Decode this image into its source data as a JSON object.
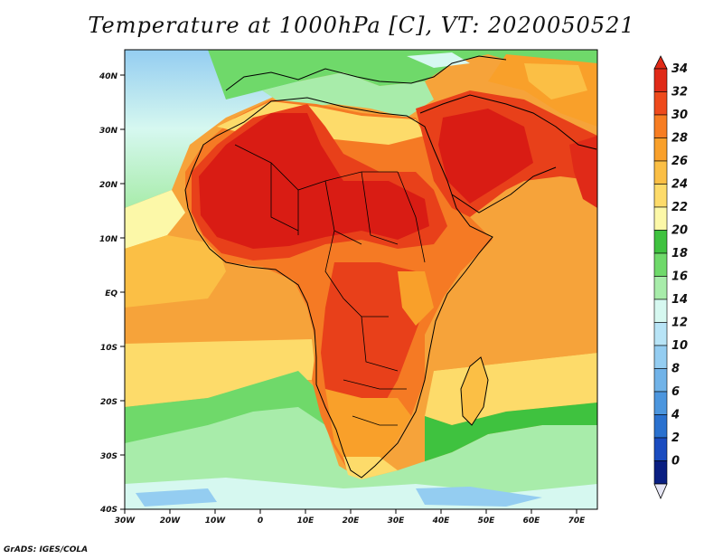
{
  "title": "Temperature at 1000hPa [C], VT: 2020050521",
  "credit": "GrADS: IGES/COLA",
  "lat_labels": [
    "40N",
    "30N",
    "20N",
    "10N",
    "EQ",
    "10S",
    "20S",
    "30S",
    "40S"
  ],
  "lon_labels": [
    "30W",
    "20W",
    "10W",
    "0",
    "10E",
    "20E",
    "30E",
    "40E",
    "50E",
    "60E",
    "70E"
  ],
  "colorbar": {
    "labels": [
      "34",
      "32",
      "30",
      "28",
      "26",
      "24",
      "22",
      "20",
      "18",
      "16",
      "14",
      "12",
      "10",
      "8",
      "6",
      "4",
      "2",
      "0"
    ],
    "colors": [
      "#e02a18",
      "#ee4a1c",
      "#f77d22",
      "#f9a02a",
      "#fbbf45",
      "#fddb6a",
      "#fcf8a8",
      "#3fc23f",
      "#6fd96a",
      "#a8ecaa",
      "#d6f8f0",
      "#b8e4f6",
      "#94cdf1",
      "#71b3e8",
      "#4c96de",
      "#2a71cf",
      "#1a4cc0",
      "#0a1f82"
    ],
    "colors_note_order": "top-to-bottom"
  },
  "legend_colors": {
    "ocean_warm": "#f6a33a",
    "ocean_mid": "#fbbf45",
    "sahara_hot": "#d91c14",
    "land_hot": "#e8401a",
    "land_warm": "#f57a24",
    "green_cool": "#6fd96a",
    "green_light": "#a8ecaa",
    "cyan_cold": "#d6f8f0",
    "blue_cold": "#94cdf1",
    "coastline": "#000000"
  }
}
